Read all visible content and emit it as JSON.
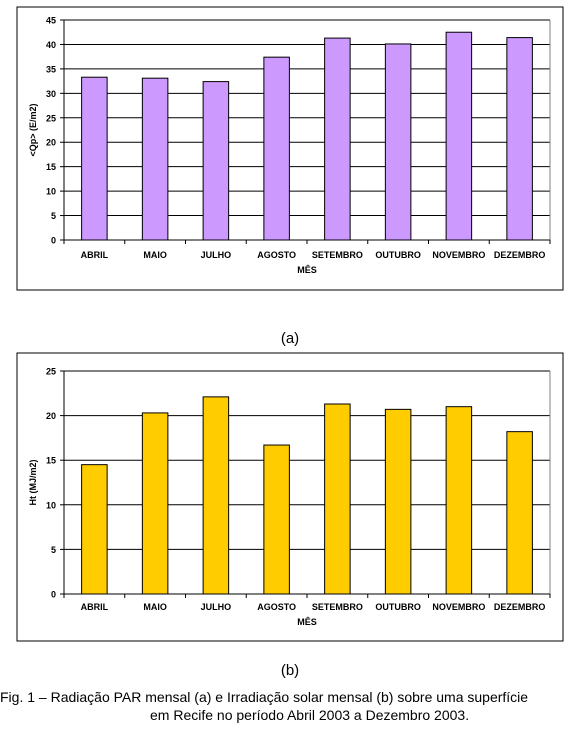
{
  "chart_data": [
    {
      "type": "bar",
      "categories": [
        "ABRIL",
        "MAIO",
        "JULHO",
        "AGOSTO",
        "SETEMBRO",
        "OUTUBRO",
        "NOVEMBRO",
        "DEZEMBRO"
      ],
      "values": [
        33.3,
        33.1,
        32.4,
        37.4,
        41.3,
        40.1,
        42.5,
        41.4
      ],
      "xlabel": "MÊS",
      "ylabel": "<Qp> (E/m2)",
      "ylim": [
        0,
        45
      ],
      "yticks": [
        0,
        5,
        10,
        15,
        20,
        25,
        30,
        35,
        40,
        45
      ],
      "grid": true,
      "bar_color": "#cc99ff"
    },
    {
      "type": "bar",
      "categories": [
        "ABRIL",
        "MAIO",
        "JULHO",
        "AGOSTO",
        "SETEMBRO",
        "OUTUBRO",
        "NOVEMBRO",
        "DEZEMBRO"
      ],
      "values": [
        14.5,
        20.3,
        22.1,
        16.7,
        21.3,
        20.7,
        21.0,
        18.2
      ],
      "xlabel": "MÊS",
      "ylabel": "Ht (MJ/m2)",
      "ylim": [
        0,
        25
      ],
      "yticks": [
        0,
        5,
        10,
        15,
        20,
        25
      ],
      "grid": true,
      "bar_color": "#ffcc00"
    }
  ],
  "labels": {
    "a": "(a)",
    "b": "(b)"
  },
  "caption": {
    "line1": "Fig. 1 – Radiação PAR mensal (a) e Irradiação solar mensal (b) sobre uma superfície",
    "line2": "em Recife no período Abril 2003 a Dezembro 2003."
  }
}
